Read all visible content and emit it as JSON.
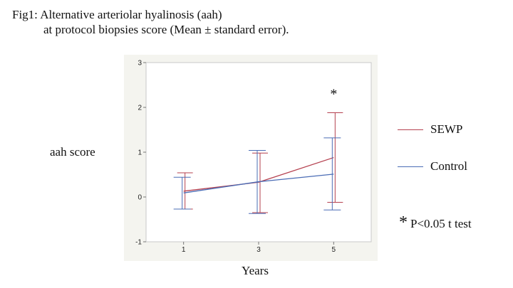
{
  "title": {
    "line1": "Fig1: Alternative arteriolar hyalinosis (aah)",
    "line2": "at protocol biopsies score (Mean ± standard error)."
  },
  "chart_data": {
    "type": "line",
    "title": "Fig1: Alternative arteriolar hyalinosis (aah) at protocol biopsies score (Mean ± standard error).",
    "xlabel": "Years",
    "ylabel": "aah score",
    "x": [
      1,
      3,
      5
    ],
    "xlim": [
      0,
      6
    ],
    "ylim": [
      -1,
      3
    ],
    "yticks": [
      -1,
      0,
      1,
      2,
      3
    ],
    "xticks": [
      1,
      3,
      5
    ],
    "grid": false,
    "legend_position": "right",
    "series": [
      {
        "name": "SEWP",
        "color": "#b5404f",
        "mean": [
          0.13,
          0.33,
          0.88
        ],
        "upper": [
          0.54,
          0.98,
          1.88
        ],
        "lower": [
          -0.27,
          -0.35,
          -0.12
        ]
      },
      {
        "name": "Control",
        "color": "#4a6cb5",
        "mean": [
          0.09,
          0.34,
          0.51
        ],
        "upper": [
          0.44,
          1.04,
          1.32
        ],
        "lower": [
          -0.27,
          -0.37,
          -0.29
        ]
      }
    ],
    "annotations": [
      {
        "text": "*",
        "x": 5,
        "y": 2.2
      }
    ],
    "note": {
      "star": "*",
      "text": "P<0.05 t test"
    }
  }
}
